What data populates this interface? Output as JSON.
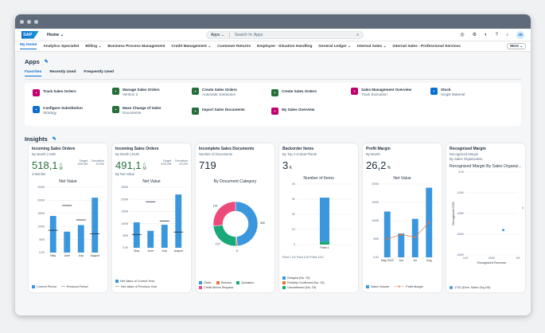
{
  "shell": {
    "logo": "SAP",
    "home": "Home",
    "scope": "Apps",
    "search_placeholder": "Search In: Apps",
    "avatar": "JD"
  },
  "nav": {
    "items": [
      "My Home",
      "Analytics Specialist",
      "Billing",
      "Business Process Management",
      "Credit Management",
      "Customer Returns",
      "Employee - Situation Handling",
      "General Ledger",
      "Internal Sales",
      "Internal Sales - Professional Services"
    ],
    "more": "More"
  },
  "apps": {
    "title": "Apps",
    "tabs": [
      "Favorites",
      "Recently Used",
      "Frequently Used"
    ],
    "tiles": [
      {
        "title": "Track Sales Orders",
        "subtitle": "",
        "color": "#c1006f",
        "icon": "order-icon"
      },
      {
        "title": "Manage Sales Orders",
        "subtitle": "Version 2",
        "color": "#256f3a",
        "icon": "document-icon"
      },
      {
        "title": "Create Sales Orders",
        "subtitle": "Automatic Extraction",
        "color": "#256f3a",
        "icon": "create-icon"
      },
      {
        "title": "Create Sales Orders",
        "subtitle": "",
        "color": "#256f3a",
        "icon": "create-icon"
      },
      {
        "title": "Sales Management Overview",
        "subtitle": "Track Execution",
        "color": "#c1006f",
        "icon": "overview-icon"
      },
      {
        "title": "Stock",
        "subtitle": "Single Material",
        "color": "#0a6ed1",
        "icon": "stock-icon"
      },
      {
        "title": "Configure Substitution",
        "subtitle": "Strategy",
        "color": "#0a6ed1",
        "icon": "configure-icon"
      },
      {
        "title": "Mass Change of Sales",
        "subtitle": "Documents",
        "color": "#256f3a",
        "icon": "mass-change-icon"
      },
      {
        "title": "Import Sales Documents",
        "subtitle": "",
        "color": "#256f3a",
        "icon": "import-icon"
      },
      {
        "title": "My Sales Overview",
        "subtitle": "",
        "color": "#c1006f",
        "icon": "overview-icon"
      }
    ]
  },
  "insights": {
    "title": "Insights",
    "cards": [
      {
        "title": "Incoming Sales Orders",
        "subtitle": "By Month | USD",
        "kpi": "518,1",
        "kpi_unit": "M",
        "note": "4 Months",
        "target_label": "Target",
        "target": "469,0M",
        "deviation_label": "Deviation",
        "deviation": "10,5%",
        "chart_title": "Net Value",
        "legend": [
          "Current Period",
          "Previous Period"
        ]
      },
      {
        "title": "Incoming Sales Orders",
        "subtitle": "By Month | EUR",
        "kpi": "491,1",
        "kpi_unit": "M",
        "note": "By Net Value",
        "target_label": "Target",
        "target": "409,2M",
        "deviation_label": "Deviation",
        "deviation": "20,0%",
        "chart_title": "Net Value",
        "legend": [
          "Net Value of Current Year",
          "Net Value of Previous Year"
        ]
      },
      {
        "title": "Incomplete Sales Documents",
        "subtitle": "Number of Documents",
        "kpi": "719",
        "chart_title": "By Document Category",
        "legend": [
          "Order",
          "Returns",
          "Quotation",
          "Credit Memo Request"
        ]
      },
      {
        "title": "Backorder Items",
        "subtitle": "By Top 4 Critical Plants",
        "kpi": "3",
        "kpi_unit": "K",
        "chart_title": "Number of Items",
        "xlabel": "Plant 1 US Plant 1010 Plant 1110",
        "legend": [
          "Delayed (No. Of)",
          "Partially Confirmed (No. Of)",
          "Unconfirmed (No. Of)"
        ]
      },
      {
        "title": "Profit Margin",
        "subtitle": "By Month",
        "kpi": "26,2",
        "kpi_unit": "%",
        "chart_title": "Net Value",
        "legend": [
          "Sales Volume",
          "Profit Margin"
        ]
      },
      {
        "title": "Recognized Margin",
        "subtitle": "Recognized Margin",
        "subtitle2": "By Sales Organization",
        "chart_title": "Recognized Margin By Sales Organiz...",
        "ylabel": "Recognized COS",
        "xlabel": "Recognized Revenue",
        "legend": [
          "1710 (Dom. Sales Org US)"
        ]
      }
    ]
  },
  "chart_data": [
    {
      "type": "bar",
      "title": "Net Value",
      "categories": [
        "May",
        "June",
        "July",
        "August"
      ],
      "series": [
        {
          "name": "Current Period",
          "values": [
            140,
            80,
            105,
            210
          ]
        }
      ],
      "reference": [
        {
          "name": "Previous Period",
          "values": [
            85,
            180,
            125,
            72
          ]
        }
      ],
      "ylim": [
        0,
        250
      ],
      "yticks": [
        "250M",
        "200M",
        "150M",
        "100M",
        "50M",
        "0,00"
      ]
    },
    {
      "type": "bar",
      "title": "Net Value",
      "categories": [
        "May",
        "June",
        "July",
        "August"
      ],
      "series": [
        {
          "name": "Net Value of Current Year",
          "values": [
            105,
            70,
            95,
            220
          ]
        }
      ],
      "reference": [
        {
          "name": "Net Value of Previous Year",
          "values": [
            55,
            190,
            110,
            65
          ]
        }
      ],
      "ylim": [
        0,
        250
      ],
      "yticks": [
        "250M",
        "200M",
        "150M",
        "100M",
        "50M",
        "0,00"
      ]
    },
    {
      "type": "pie",
      "title": "By Document Category",
      "values": [
        {
          "label": "Order",
          "value": 350
        },
        {
          "label": "Returns",
          "value": 6
        },
        {
          "label": "Quotation",
          "value": 172
        },
        {
          "label": "Credit Memo Request",
          "value": 191
        }
      ]
    },
    {
      "type": "bar",
      "title": "Number of Items",
      "categories": [
        "Plant 1"
      ],
      "series": [
        {
          "name": "Unconfirmed (No. Of)",
          "values": [
            0.2
          ]
        },
        {
          "name": "Delayed (No. Of)",
          "values": [
            2.9
          ]
        }
      ],
      "ylim": [
        0,
        4
      ],
      "yticks": [
        "4K",
        "3K",
        "2K",
        "1K",
        "0"
      ]
    },
    {
      "type": "bar",
      "title": "Net Value",
      "categories": [
        "May 2022",
        "Jun",
        "Jul",
        "Aug"
      ],
      "series": [
        {
          "name": "Sales Volume",
          "values": [
            125,
            65,
            105,
            190
          ]
        }
      ],
      "line": {
        "name": "Profit Margin",
        "values": [
          20,
          25,
          22,
          38
        ]
      },
      "ylim": [
        0,
        200
      ],
      "yticks": [
        "200M",
        "150M",
        "100M",
        "50M",
        "0,00"
      ]
    },
    {
      "type": "scatter",
      "title": "Recognized Margin By Sales Organiz...",
      "x": [
        1.6
      ],
      "y": [
        -0.6
      ],
      "xlabel": "Recognized Revenue",
      "ylabel": "Recognized COS",
      "xticks": [
        "0,00",
        "500K",
        "1M"
      ],
      "yticks": [
        "0,00",
        "-100K",
        "-200K",
        "-300K",
        "-400K"
      ]
    }
  ]
}
